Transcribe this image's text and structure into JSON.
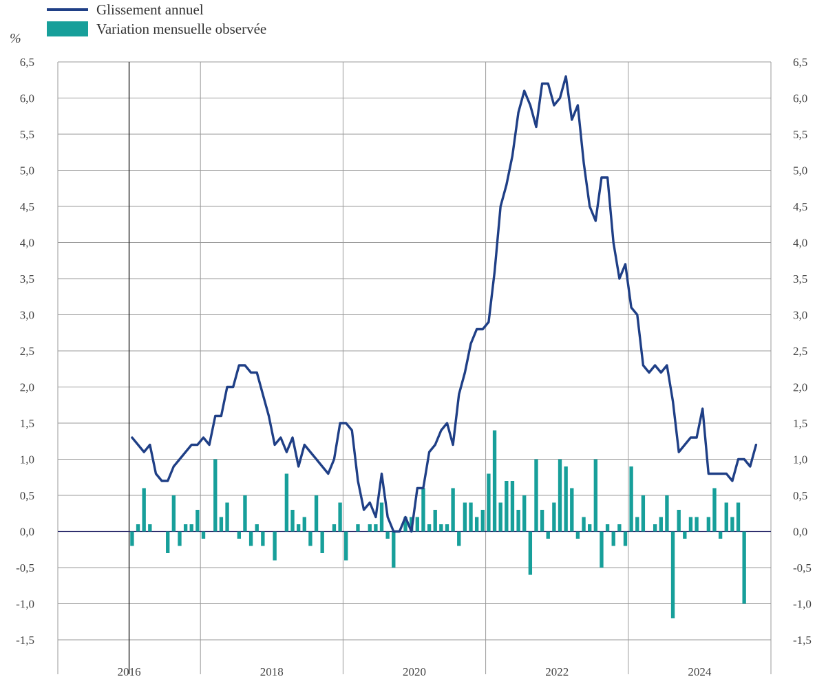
{
  "legend": {
    "line_label": "Glissement annuel",
    "bar_label": "Variation mensuelle observée"
  },
  "colors": {
    "line": "#1f3f86",
    "bars": "#179f9a",
    "grid": "#9a9a9a"
  },
  "chart_data": {
    "type": "bar+line",
    "title": "",
    "ylabel": "%",
    "ylim": [
      -1.5,
      6.5
    ],
    "yticks": [
      -1.5,
      -1.0,
      -0.5,
      0.0,
      0.5,
      1.0,
      1.5,
      2.0,
      2.5,
      3.0,
      3.5,
      4.0,
      4.5,
      5.0,
      5.5,
      6.0,
      6.5
    ],
    "ytick_labels": [
      "-1,5",
      "-1,0",
      "-0,5",
      "0,0",
      "0,5",
      "1,0",
      "1,5",
      "2,0",
      "2,5",
      "3,0",
      "3,5",
      "4,0",
      "4,5",
      "5,0",
      "5,5",
      "6,0",
      "6,5"
    ],
    "x_start": "2016-01",
    "x_end": "2025-12",
    "x_labels": [
      "2016",
      "2018",
      "2020",
      "2022",
      "2024"
    ],
    "series": [
      {
        "name": "Glissement annuel",
        "kind": "line",
        "start": "2017-01",
        "values": [
          1.3,
          1.2,
          1.1,
          1.2,
          0.8,
          0.7,
          0.7,
          0.9,
          1.0,
          1.1,
          1.2,
          1.2,
          1.3,
          1.2,
          1.6,
          1.6,
          2.0,
          2.0,
          2.3,
          2.3,
          2.2,
          2.2,
          1.9,
          1.6,
          1.2,
          1.3,
          1.1,
          1.3,
          0.9,
          1.2,
          1.1,
          1.0,
          0.9,
          0.8,
          1.0,
          1.5,
          1.5,
          1.4,
          0.7,
          0.3,
          0.4,
          0.2,
          0.8,
          0.2,
          0.0,
          0.0,
          0.2,
          0.0,
          0.6,
          0.6,
          1.1,
          1.2,
          1.4,
          1.5,
          1.2,
          1.9,
          2.2,
          2.6,
          2.8,
          2.8,
          2.9,
          3.6,
          4.5,
          4.8,
          5.2,
          5.8,
          6.1,
          5.9,
          5.6,
          6.2,
          6.2,
          5.9,
          6.0,
          6.3,
          5.7,
          5.9,
          5.1,
          4.5,
          4.3,
          4.9,
          4.9,
          4.0,
          3.5,
          3.7,
          3.1,
          3.0,
          2.3,
          2.2,
          2.3,
          2.2,
          2.3,
          1.8,
          1.1,
          1.2,
          1.3,
          1.3,
          1.7,
          0.8,
          0.8,
          0.8,
          0.8,
          0.7,
          1.0,
          1.0,
          0.9,
          1.2
        ]
      },
      {
        "name": "Variation mensuelle observée",
        "kind": "bar",
        "start": "2017-01",
        "values": [
          -0.2,
          0.1,
          0.6,
          0.1,
          0.0,
          0.0,
          -0.3,
          0.5,
          -0.2,
          0.1,
          0.1,
          0.3,
          -0.1,
          0.0,
          1.0,
          0.2,
          0.4,
          0.0,
          -0.1,
          0.5,
          -0.2,
          0.1,
          -0.2,
          0.0,
          -0.4,
          0.0,
          0.8,
          0.3,
          0.1,
          0.2,
          -0.2,
          0.5,
          -0.3,
          0.0,
          0.1,
          0.4,
          -0.4,
          0.0,
          0.1,
          0.0,
          0.1,
          0.1,
          0.4,
          -0.1,
          -0.5,
          0.0,
          0.2,
          0.2,
          0.2,
          0.6,
          0.1,
          0.3,
          0.1,
          0.1,
          0.6,
          -0.2,
          0.4,
          0.4,
          0.2,
          0.3,
          0.8,
          1.4,
          0.4,
          0.7,
          0.7,
          0.3,
          0.5,
          -0.6,
          1.0,
          0.3,
          -0.1,
          0.4,
          1.0,
          0.9,
          0.6,
          -0.1,
          0.2,
          0.1,
          1.0,
          -0.5,
          0.1,
          -0.2,
          0.1,
          -0.2,
          0.9,
          0.2,
          0.5,
          0.0,
          0.1,
          0.2,
          0.5,
          -1.2,
          0.3,
          -0.1,
          0.2,
          0.2,
          0.0,
          0.2,
          0.6,
          -0.1,
          0.4,
          0.2,
          0.4,
          -1.0
        ]
      }
    ],
    "grid": true,
    "legend_position": "top-left"
  }
}
